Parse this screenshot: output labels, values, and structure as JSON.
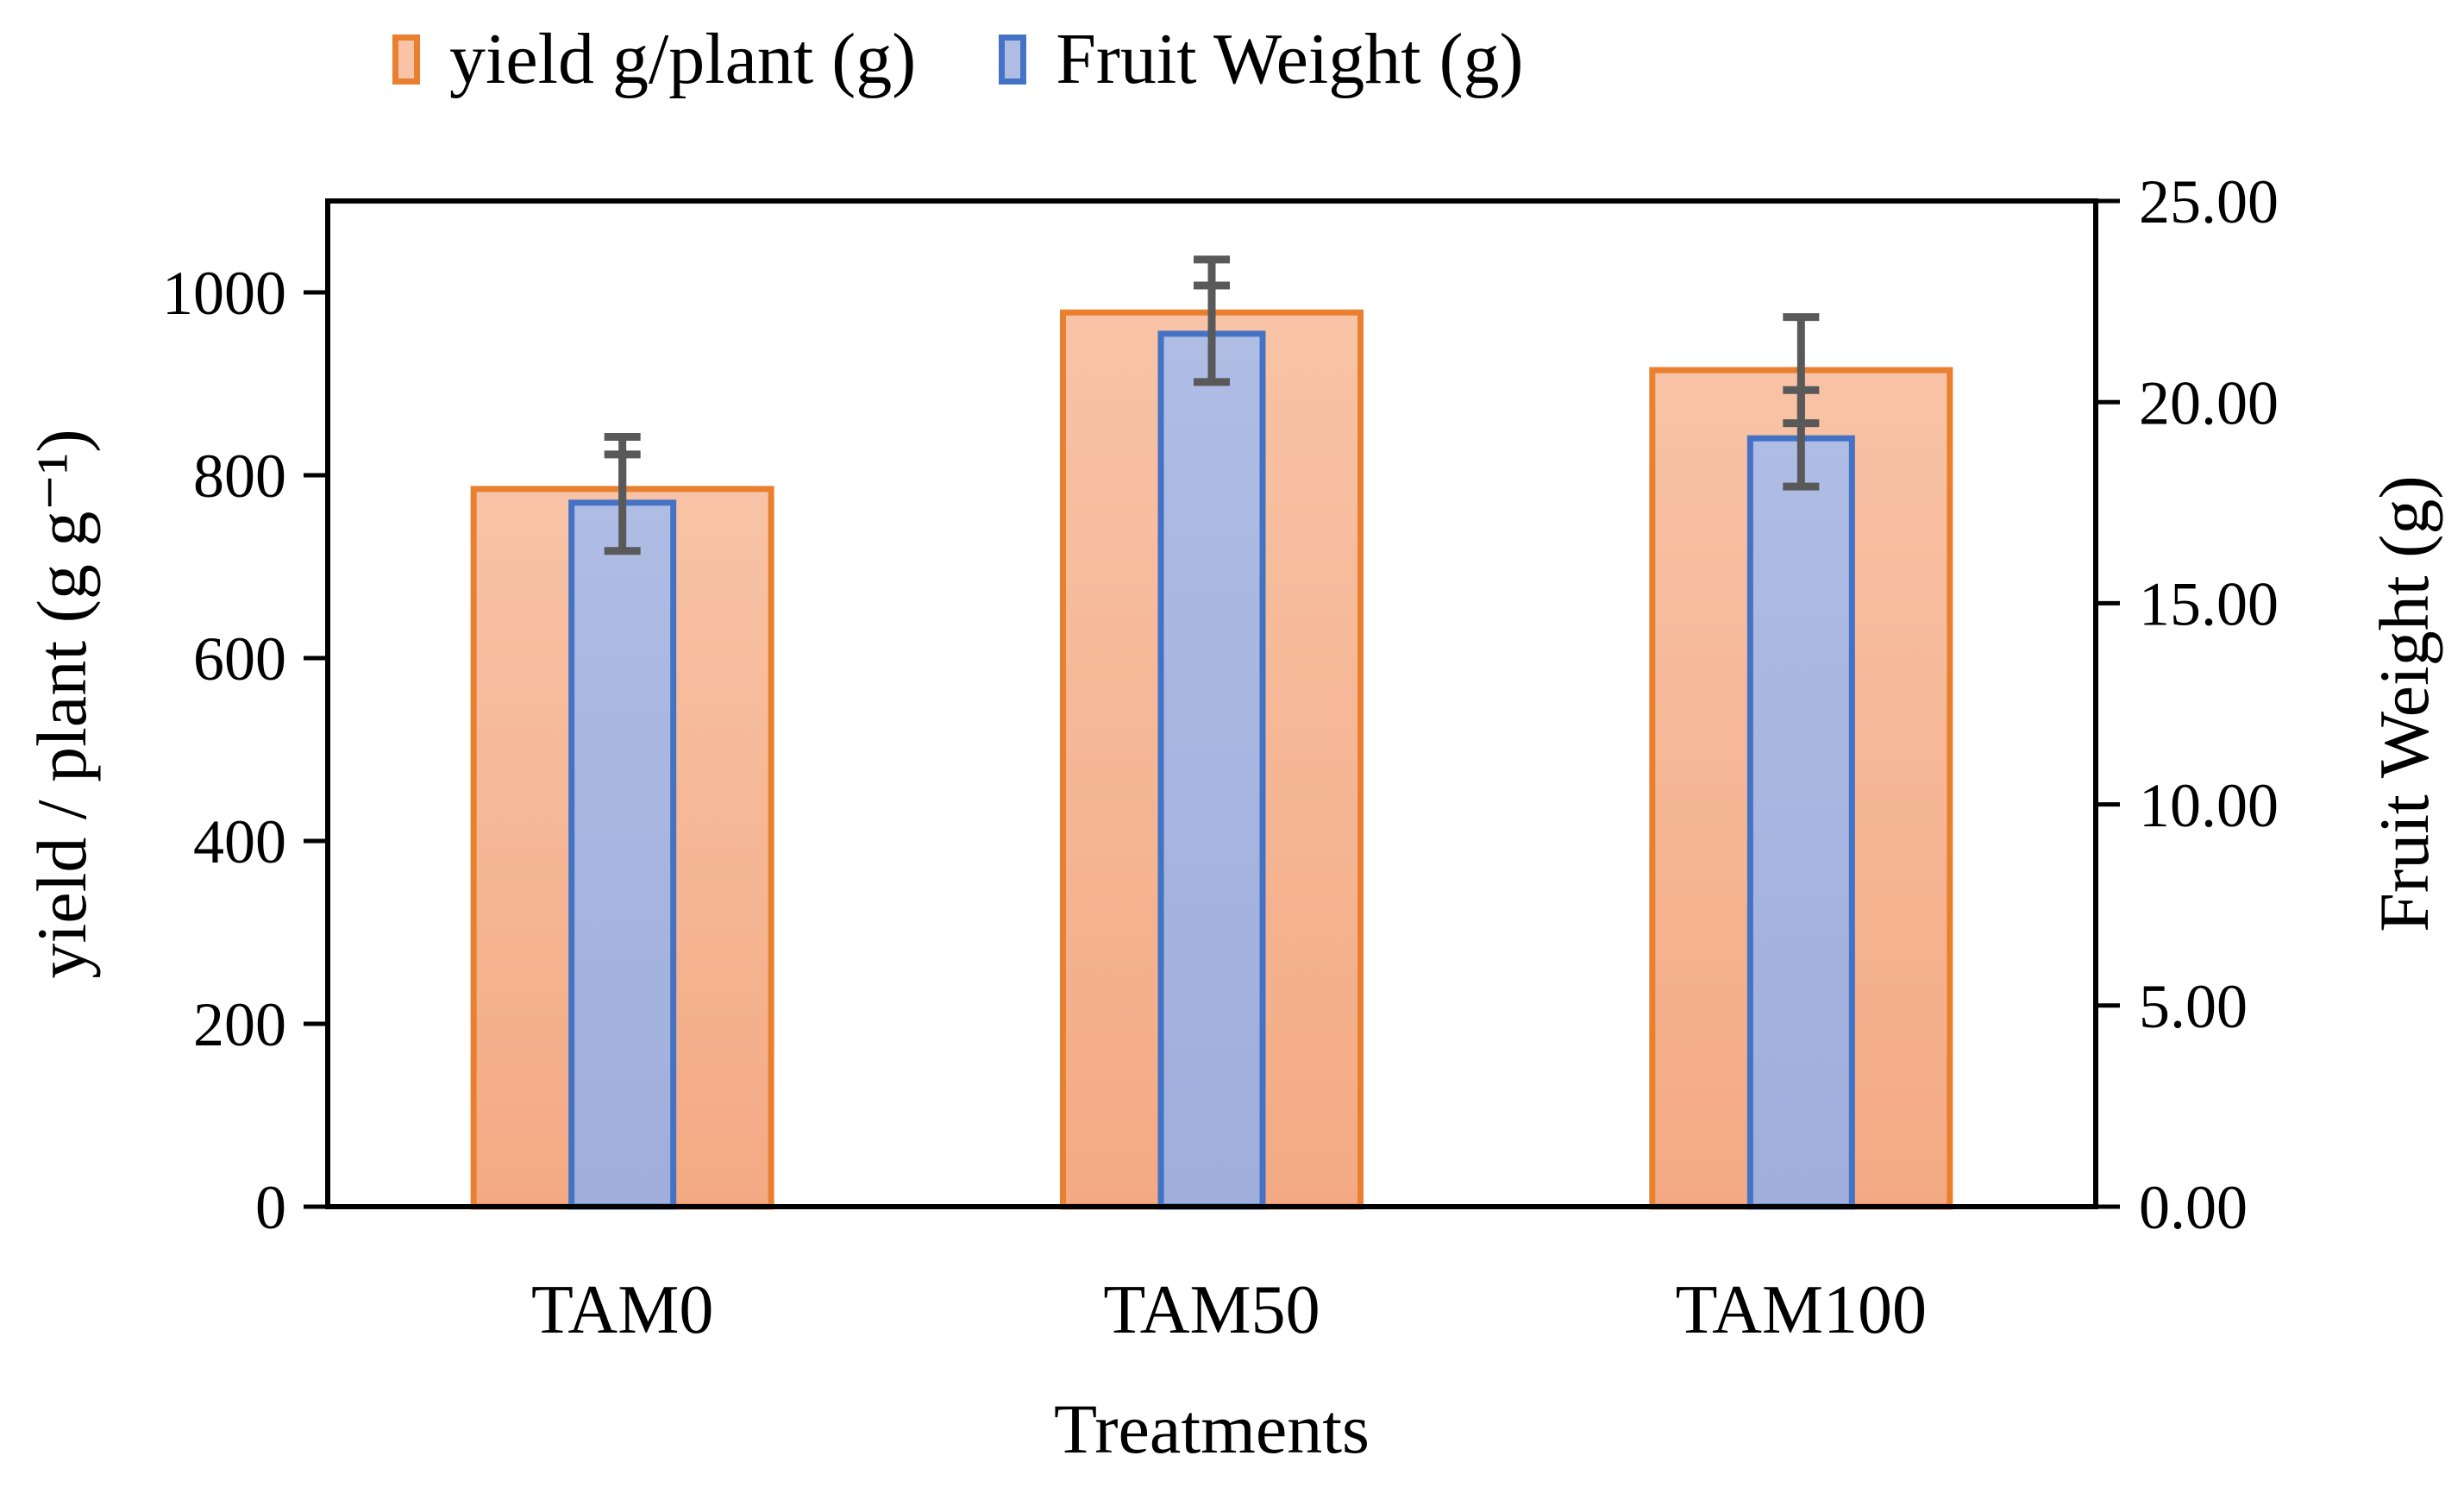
{
  "figure": {
    "background": "#ffffff"
  },
  "chart_data": {
    "type": "bar",
    "categories": [
      "TAM0",
      "TAM50",
      "TAM100"
    ],
    "series": [
      {
        "name": "yield g/plant (g)",
        "axis": "left",
        "values": [
          785,
          978,
          915
        ],
        "errors": [
          57,
          58,
          58
        ],
        "border": "#E8802F",
        "fill_top": "#F8C3A6",
        "fill_bottom": "#F3AA84"
      },
      {
        "name": "Fruit Weight (g)",
        "axis": "right",
        "values": [
          17.5,
          21.7,
          19.1
        ],
        "errors": [
          1.2,
          1.2,
          1.2
        ],
        "border": "#4472C4",
        "fill_top": "#AFBCE4",
        "fill_bottom": "#9FAEDB"
      }
    ],
    "axes": {
      "left": {
        "label": "yield / plant (g g⁻¹)",
        "min": 0,
        "max": 1100,
        "ticks": [
          "0",
          "200",
          "400",
          "600",
          "800",
          "1000"
        ]
      },
      "right": {
        "label": "Fruit Weight (g)",
        "min": 0,
        "max": 25,
        "ticks": [
          "0.00",
          "5.00",
          "10.00",
          "15.00",
          "20.00",
          "25.00"
        ]
      },
      "x": {
        "label": "Treatments"
      }
    },
    "legend_position": "top",
    "grid": false,
    "error_color": "#595959",
    "axis_color": "#000000"
  }
}
